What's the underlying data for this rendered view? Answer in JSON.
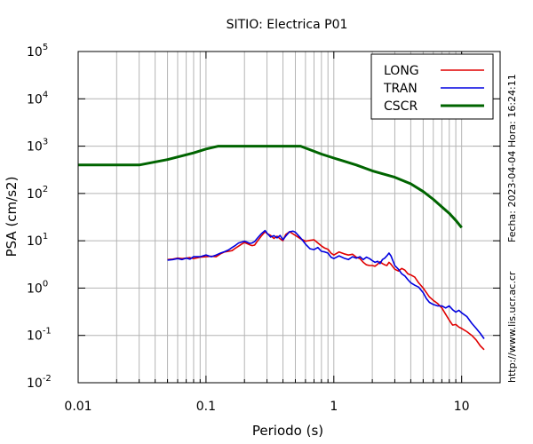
{
  "chart_data": {
    "type": "line",
    "title": "SITIO: Electrica P01",
    "xlabel": "Periodo (s)",
    "ylabel": "PSA (cm/s2)",
    "xscale": "log",
    "yscale": "log",
    "xlim": [
      0.01,
      20
    ],
    "ylim": [
      0.01,
      100000
    ],
    "grid": true,
    "legend_position": "top-right",
    "x_ticks": [
      {
        "value": 0.01,
        "label": "0.01"
      },
      {
        "value": 0.1,
        "label": "0.1"
      },
      {
        "value": 1,
        "label": "1"
      },
      {
        "value": 10,
        "label": "10"
      }
    ],
    "y_ticks": [
      {
        "value": 0.01,
        "base": "10",
        "exp": "-2"
      },
      {
        "value": 0.1,
        "base": "10",
        "exp": "-1"
      },
      {
        "value": 1,
        "base": "10",
        "exp": "0"
      },
      {
        "value": 10,
        "base": "10",
        "exp": "1"
      },
      {
        "value": 100,
        "base": "10",
        "exp": "2"
      },
      {
        "value": 1000,
        "base": "10",
        "exp": "3"
      },
      {
        "value": 10000,
        "base": "10",
        "exp": "4"
      },
      {
        "value": 100000,
        "base": "10",
        "exp": "5"
      }
    ],
    "series": [
      {
        "name": "LONG",
        "color": "#e00000",
        "width": 1.6,
        "points": [
          [
            0.05,
            4.0
          ],
          [
            0.055,
            4.1
          ],
          [
            0.06,
            4.3
          ],
          [
            0.065,
            4.2
          ],
          [
            0.07,
            4.3
          ],
          [
            0.075,
            4.4
          ],
          [
            0.08,
            4.2
          ],
          [
            0.09,
            4.5
          ],
          [
            0.1,
            4.6
          ],
          [
            0.11,
            4.7
          ],
          [
            0.12,
            4.6
          ],
          [
            0.13,
            5.3
          ],
          [
            0.14,
            5.8
          ],
          [
            0.15,
            6.0
          ],
          [
            0.16,
            6.2
          ],
          [
            0.17,
            7.0
          ],
          [
            0.18,
            7.7
          ],
          [
            0.19,
            8.5
          ],
          [
            0.2,
            9.2
          ],
          [
            0.21,
            8.7
          ],
          [
            0.22,
            8.2
          ],
          [
            0.23,
            7.9
          ],
          [
            0.24,
            8.1
          ],
          [
            0.25,
            9.5
          ],
          [
            0.27,
            12.5
          ],
          [
            0.29,
            15.5
          ],
          [
            0.3,
            14.3
          ],
          [
            0.32,
            13.0
          ],
          [
            0.34,
            11.2
          ],
          [
            0.36,
            12.5
          ],
          [
            0.38,
            11.0
          ],
          [
            0.4,
            10.0
          ],
          [
            0.42,
            13.5
          ],
          [
            0.45,
            15.5
          ],
          [
            0.48,
            14.0
          ],
          [
            0.5,
            13.0
          ],
          [
            0.55,
            11.0
          ],
          [
            0.6,
            9.8
          ],
          [
            0.65,
            10.2
          ],
          [
            0.7,
            10.5
          ],
          [
            0.75,
            9.0
          ],
          [
            0.8,
            7.8
          ],
          [
            0.85,
            7.0
          ],
          [
            0.9,
            6.6
          ],
          [
            0.95,
            5.5
          ],
          [
            1.0,
            5.0
          ],
          [
            1.1,
            5.8
          ],
          [
            1.2,
            5.3
          ],
          [
            1.3,
            5.0
          ],
          [
            1.4,
            5.2
          ],
          [
            1.5,
            4.5
          ],
          [
            1.6,
            4.2
          ],
          [
            1.7,
            3.5
          ],
          [
            1.8,
            3.1
          ],
          [
            1.9,
            3.0
          ],
          [
            2.0,
            3.0
          ],
          [
            2.1,
            2.9
          ],
          [
            2.2,
            3.2
          ],
          [
            2.3,
            3.6
          ],
          [
            2.4,
            3.3
          ],
          [
            2.5,
            3.1
          ],
          [
            2.6,
            3.0
          ],
          [
            2.7,
            3.5
          ],
          [
            2.8,
            3.2
          ],
          [
            3.0,
            2.5
          ],
          [
            3.2,
            2.3
          ],
          [
            3.4,
            2.6
          ],
          [
            3.6,
            2.4
          ],
          [
            3.8,
            2.0
          ],
          [
            4.0,
            1.9
          ],
          [
            4.3,
            1.7
          ],
          [
            4.6,
            1.3
          ],
          [
            5.0,
            1.0
          ],
          [
            5.3,
            0.8
          ],
          [
            5.6,
            0.65
          ],
          [
            6.0,
            0.55
          ],
          [
            6.5,
            0.47
          ],
          [
            7.0,
            0.38
          ],
          [
            7.5,
            0.28
          ],
          [
            8.0,
            0.21
          ],
          [
            8.5,
            0.165
          ],
          [
            9.0,
            0.17
          ],
          [
            9.5,
            0.15
          ],
          [
            10.0,
            0.14
          ],
          [
            11.0,
            0.12
          ],
          [
            12.0,
            0.1
          ],
          [
            13.0,
            0.08
          ],
          [
            14.0,
            0.06
          ],
          [
            15.0,
            0.05
          ]
        ]
      },
      {
        "name": "TRAN",
        "color": "#0000e0",
        "width": 1.6,
        "points": [
          [
            0.05,
            3.9
          ],
          [
            0.055,
            4.0
          ],
          [
            0.06,
            4.2
          ],
          [
            0.065,
            4.0
          ],
          [
            0.07,
            4.3
          ],
          [
            0.075,
            4.1
          ],
          [
            0.08,
            4.6
          ],
          [
            0.09,
            4.6
          ],
          [
            0.1,
            5.0
          ],
          [
            0.11,
            4.6
          ],
          [
            0.12,
            5.0
          ],
          [
            0.13,
            5.5
          ],
          [
            0.14,
            5.9
          ],
          [
            0.15,
            6.4
          ],
          [
            0.16,
            7.2
          ],
          [
            0.17,
            8.0
          ],
          [
            0.18,
            9.0
          ],
          [
            0.19,
            9.4
          ],
          [
            0.2,
            9.8
          ],
          [
            0.21,
            9.3
          ],
          [
            0.22,
            8.8
          ],
          [
            0.23,
            9.0
          ],
          [
            0.24,
            9.6
          ],
          [
            0.25,
            11.0
          ],
          [
            0.27,
            14.0
          ],
          [
            0.29,
            16.5
          ],
          [
            0.3,
            14.5
          ],
          [
            0.32,
            12.0
          ],
          [
            0.34,
            12.8
          ],
          [
            0.36,
            11.5
          ],
          [
            0.38,
            13.0
          ],
          [
            0.4,
            10.5
          ],
          [
            0.42,
            12.5
          ],
          [
            0.45,
            15.5
          ],
          [
            0.48,
            16.0
          ],
          [
            0.5,
            15.2
          ],
          [
            0.55,
            11.5
          ],
          [
            0.6,
            8.5
          ],
          [
            0.65,
            6.8
          ],
          [
            0.7,
            6.5
          ],
          [
            0.75,
            7.2
          ],
          [
            0.8,
            6.0
          ],
          [
            0.85,
            5.8
          ],
          [
            0.9,
            5.5
          ],
          [
            0.95,
            4.5
          ],
          [
            1.0,
            4.2
          ],
          [
            1.1,
            4.8
          ],
          [
            1.2,
            4.3
          ],
          [
            1.3,
            4.0
          ],
          [
            1.4,
            4.6
          ],
          [
            1.5,
            4.3
          ],
          [
            1.6,
            4.6
          ],
          [
            1.7,
            4.0
          ],
          [
            1.8,
            4.5
          ],
          [
            1.9,
            4.2
          ],
          [
            2.0,
            3.8
          ],
          [
            2.1,
            3.5
          ],
          [
            2.2,
            3.7
          ],
          [
            2.3,
            3.3
          ],
          [
            2.4,
            4.0
          ],
          [
            2.5,
            4.3
          ],
          [
            2.6,
            4.8
          ],
          [
            2.7,
            5.5
          ],
          [
            2.8,
            4.8
          ],
          [
            3.0,
            3.0
          ],
          [
            3.2,
            2.5
          ],
          [
            3.4,
            2.0
          ],
          [
            3.6,
            1.8
          ],
          [
            3.8,
            1.5
          ],
          [
            4.0,
            1.3
          ],
          [
            4.3,
            1.15
          ],
          [
            4.6,
            1.05
          ],
          [
            5.0,
            0.8
          ],
          [
            5.3,
            0.6
          ],
          [
            5.6,
            0.5
          ],
          [
            6.0,
            0.45
          ],
          [
            6.5,
            0.42
          ],
          [
            7.0,
            0.42
          ],
          [
            7.5,
            0.38
          ],
          [
            8.0,
            0.42
          ],
          [
            8.5,
            0.35
          ],
          [
            9.0,
            0.31
          ],
          [
            9.5,
            0.34
          ],
          [
            10.0,
            0.3
          ],
          [
            11.0,
            0.25
          ],
          [
            12.0,
            0.18
          ],
          [
            13.0,
            0.14
          ],
          [
            14.0,
            0.11
          ],
          [
            15.0,
            0.085
          ]
        ]
      },
      {
        "name": "CSCR",
        "color": "#006400",
        "width": 3,
        "points": [
          [
            0.01,
            400
          ],
          [
            0.03,
            400
          ],
          [
            0.05,
            520
          ],
          [
            0.08,
            720
          ],
          [
            0.1,
            870
          ],
          [
            0.125,
            1000
          ],
          [
            0.3,
            1000
          ],
          [
            0.55,
            1000
          ],
          [
            0.8,
            680
          ],
          [
            1.0,
            560
          ],
          [
            1.5,
            400
          ],
          [
            2.0,
            300
          ],
          [
            3.0,
            220
          ],
          [
            4.0,
            160
          ],
          [
            5.0,
            110
          ],
          [
            6.0,
            75
          ],
          [
            7.0,
            52
          ],
          [
            8.0,
            38
          ],
          [
            9.0,
            27
          ],
          [
            10.0,
            19
          ]
        ]
      }
    ],
    "side_notes": {
      "date": "Fecha: 2023-04-04  Hora: 16:24:11",
      "url": "http://www.lis.ucr.ac.cr"
    }
  }
}
